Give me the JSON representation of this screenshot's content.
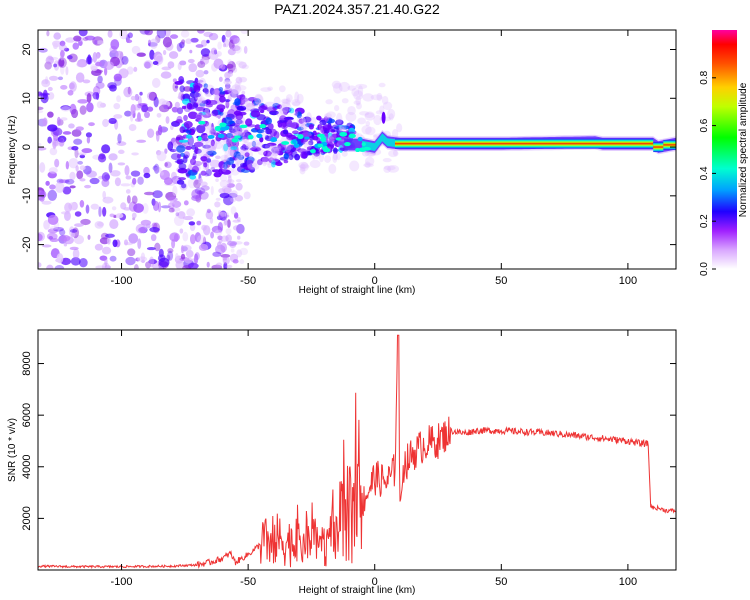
{
  "figure": {
    "title": "PAZ1.2024.357.21.40.G22"
  },
  "chart_data": [
    {
      "type": "heatmap",
      "xlabel": "Height of straight line (km)",
      "ylabel": "Frequency (Hz)",
      "xlim": [
        -133,
        119
      ],
      "ylim": [
        -25,
        24
      ],
      "xticks": [
        -100,
        -50,
        0,
        50,
        100
      ],
      "yticks": [
        -20,
        -10,
        0,
        10,
        20
      ],
      "grid": false,
      "colorbar": {
        "label": "Normalized spectral amplitude",
        "range": [
          0,
          1
        ],
        "ticks": [
          "0.0",
          "0.2",
          "0.4",
          "0.6",
          "0.8"
        ],
        "tick_values": [
          0,
          0.2,
          0.4,
          0.6,
          0.8
        ],
        "colormap": [
          "#ffffff",
          "#c040ff",
          "#4000ff",
          "#0000ff",
          "#00ffff",
          "#00ff00",
          "#ffff00",
          "#ff8000",
          "#ff0000",
          "#ff00a0"
        ]
      },
      "ridge": {
        "description_values_height_km": [
          -75,
          -60,
          -50,
          -40,
          -30,
          -20,
          -10,
          -5,
          0,
          3,
          5,
          10,
          20,
          50,
          87,
          90,
          100,
          110,
          112,
          119
        ],
        "frequency_hz": [
          4,
          3,
          3,
          2,
          1,
          1,
          0.5,
          0.5,
          0,
          2,
          1,
          0.7,
          0.7,
          0.7,
          1,
          0.7,
          0.7,
          0.7,
          0,
          0.7
        ],
        "amplitude": [
          0.15,
          0.2,
          0.25,
          0.2,
          0.25,
          0.3,
          0.35,
          0.4,
          0.3,
          0.3,
          0.4,
          0.6,
          0.7,
          0.75,
          0.6,
          0.75,
          0.75,
          0.7,
          0.35,
          0.55
        ]
      }
    },
    {
      "type": "line",
      "xlabel": "Height of straight line (km)",
      "ylabel": "SNR (10 * v/v)",
      "xlim": [
        -133,
        119
      ],
      "ylim": [
        0,
        9300
      ],
      "xticks": [
        -100,
        -50,
        0,
        50,
        100
      ],
      "yticks": [
        2000,
        4000,
        6000,
        8000
      ],
      "grid": false,
      "series": [
        {
          "color": "#ee3333",
          "x": [
            -133,
            -120,
            -100,
            -80,
            -70,
            -65,
            -60,
            -57,
            -55,
            -50,
            -45,
            -40,
            -35,
            -30,
            -25,
            -20,
            -17,
            -15,
            -12,
            -10,
            -8,
            -5,
            -2,
            0,
            2,
            5,
            8,
            9,
            10,
            11,
            12,
            15,
            20,
            25,
            30,
            35,
            40,
            50,
            60,
            70,
            80,
            90,
            100,
            105,
            108,
            109,
            110,
            112,
            115,
            119
          ],
          "y": [
            150,
            130,
            130,
            150,
            200,
            300,
            450,
            650,
            300,
            600,
            1000,
            1200,
            1100,
            950,
            1100,
            950,
            1300,
            1100,
            2800,
            1900,
            2500,
            2600,
            3200,
            3600,
            3500,
            3400,
            3900,
            9100,
            2000,
            4000,
            4100,
            4500,
            4900,
            5000,
            5400,
            5300,
            5400,
            5400,
            5350,
            5300,
            5200,
            5100,
            5000,
            4900,
            4900,
            2500,
            2400,
            2400,
            2300,
            2300
          ]
        }
      ]
    }
  ]
}
